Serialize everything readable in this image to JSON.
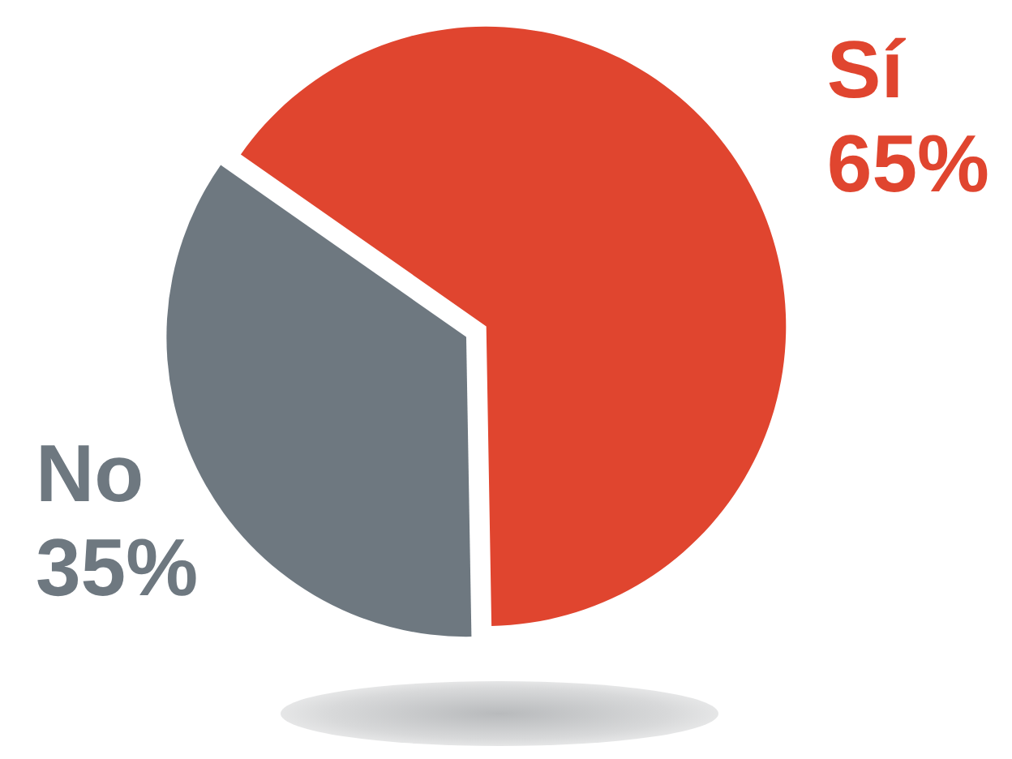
{
  "chart_data": {
    "type": "pie",
    "categories": [
      "Sí",
      "No"
    ],
    "values": [
      65,
      35
    ],
    "value_labels": [
      "65%",
      "35%"
    ],
    "colors": [
      "#e0452f",
      "#6e7880"
    ],
    "data_labels": true,
    "legend": false
  }
}
